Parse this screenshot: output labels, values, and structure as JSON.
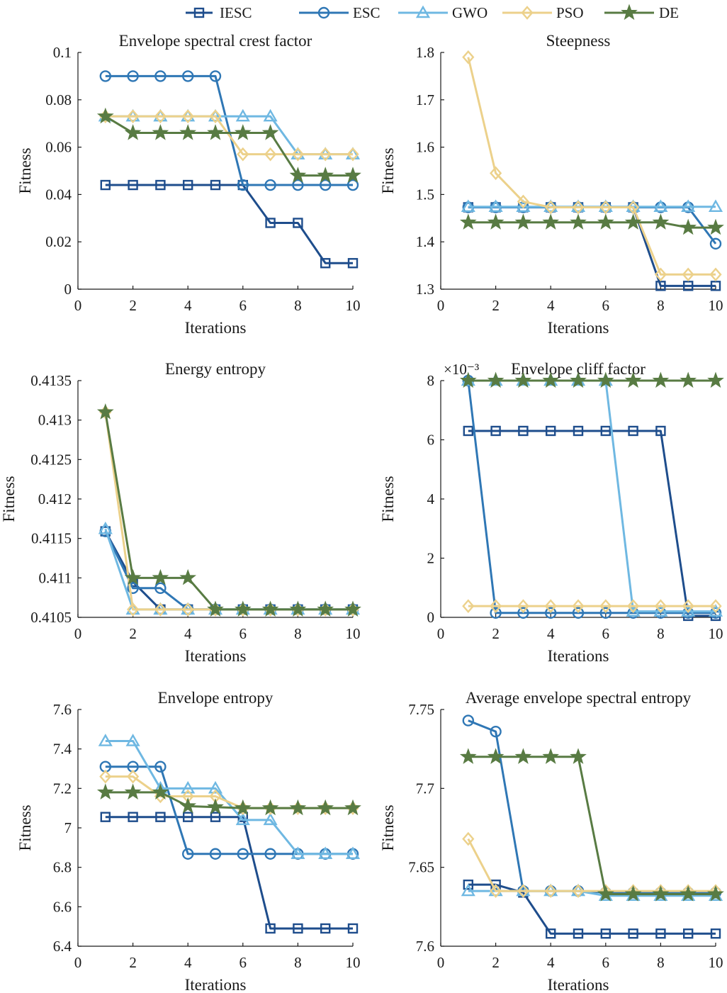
{
  "legend": [
    {
      "name": "IESC",
      "color": "#1e4d8c",
      "marker": "square"
    },
    {
      "name": "ESC",
      "color": "#2f77b5",
      "marker": "circle"
    },
    {
      "name": "GWO",
      "color": "#6fb8e2",
      "marker": "triangle"
    },
    {
      "name": "PSO",
      "color": "#ecd18b",
      "marker": "diamond"
    },
    {
      "name": "DE",
      "color": "#587b43",
      "marker": "star"
    }
  ],
  "chart_data": [
    {
      "type": "line",
      "title": "Envelope spectral crest factor",
      "xlabel": "Iterations",
      "ylabel": "Fitness",
      "xlim": [
        0,
        10
      ],
      "ylim": [
        0,
        0.1
      ],
      "xticks": [
        0,
        2,
        4,
        6,
        8,
        10
      ],
      "yticks": [
        0,
        0.02,
        0.04,
        0.06,
        0.08,
        0.1
      ],
      "ytick_labels": [
        "0",
        "0.02",
        "0.04",
        "0.06",
        "0.08",
        "0.1"
      ],
      "x": [
        1,
        2,
        3,
        4,
        5,
        6,
        7,
        8,
        9,
        10
      ],
      "series": [
        {
          "name": "IESC",
          "values": [
            0.044,
            0.044,
            0.044,
            0.044,
            0.044,
            0.044,
            0.028,
            0.028,
            0.011,
            0.011
          ]
        },
        {
          "name": "ESC",
          "values": [
            0.09,
            0.09,
            0.09,
            0.09,
            0.09,
            0.044,
            0.044,
            0.044,
            0.044,
            0.044
          ]
        },
        {
          "name": "GWO",
          "values": [
            0.073,
            0.073,
            0.073,
            0.073,
            0.073,
            0.073,
            0.073,
            0.057,
            0.057,
            0.057
          ]
        },
        {
          "name": "PSO",
          "values": [
            0.073,
            0.073,
            0.073,
            0.073,
            0.073,
            0.057,
            0.057,
            0.057,
            0.057,
            0.057
          ]
        },
        {
          "name": "DE",
          "values": [
            0.073,
            0.066,
            0.066,
            0.066,
            0.066,
            0.066,
            0.066,
            0.048,
            0.048,
            0.048
          ]
        }
      ]
    },
    {
      "type": "line",
      "title": "Steepness",
      "xlabel": "Iterations",
      "ylabel": "Fitness",
      "xlim": [
        0,
        10
      ],
      "ylim": [
        1.3,
        1.8
      ],
      "xticks": [
        0,
        2,
        4,
        6,
        8,
        10
      ],
      "yticks": [
        1.3,
        1.4,
        1.5,
        1.6,
        1.7,
        1.8
      ],
      "ytick_labels": [
        "1.3",
        "1.4",
        "1.5",
        "1.6",
        "1.7",
        "1.8"
      ],
      "x": [
        1,
        2,
        3,
        4,
        5,
        6,
        7,
        8,
        9,
        10
      ],
      "series": [
        {
          "name": "IESC",
          "values": [
            1.473,
            1.473,
            1.473,
            1.473,
            1.473,
            1.473,
            1.473,
            1.307,
            1.307,
            1.307
          ]
        },
        {
          "name": "ESC",
          "values": [
            1.473,
            1.473,
            1.473,
            1.473,
            1.473,
            1.473,
            1.473,
            1.473,
            1.473,
            1.396
          ]
        },
        {
          "name": "GWO",
          "values": [
            1.474,
            1.474,
            1.474,
            1.474,
            1.474,
            1.474,
            1.474,
            1.474,
            1.474,
            1.474
          ]
        },
        {
          "name": "PSO",
          "values": [
            1.79,
            1.545,
            1.485,
            1.473,
            1.473,
            1.473,
            1.473,
            1.331,
            1.331,
            1.331
          ]
        },
        {
          "name": "DE",
          "values": [
            1.441,
            1.441,
            1.441,
            1.441,
            1.441,
            1.441,
            1.441,
            1.441,
            1.43,
            1.43
          ]
        }
      ]
    },
    {
      "type": "line",
      "title": "Energy entropy",
      "xlabel": "Iterations",
      "ylabel": "Fitness",
      "xlim": [
        0,
        10
      ],
      "ylim": [
        0.4105,
        0.4135
      ],
      "xticks": [
        0,
        2,
        4,
        6,
        8,
        10
      ],
      "yticks": [
        0.4105,
        0.411,
        0.4115,
        0.412,
        0.4125,
        0.413,
        0.4135
      ],
      "ytick_labels": [
        "0.4105",
        "0.411",
        "0.4115",
        "0.412",
        "0.4125",
        "0.413",
        "0.4135"
      ],
      "x": [
        1,
        2,
        3,
        4,
        5,
        6,
        7,
        8,
        9,
        10
      ],
      "series": [
        {
          "name": "IESC",
          "values": [
            0.41159,
            0.41095,
            0.4106,
            0.4106,
            0.4106,
            0.4106,
            0.4106,
            0.4106,
            0.4106,
            0.4106
          ]
        },
        {
          "name": "ESC",
          "values": [
            0.41159,
            0.41087,
            0.41087,
            0.4106,
            0.4106,
            0.4106,
            0.4106,
            0.4106,
            0.4106,
            0.4106
          ]
        },
        {
          "name": "GWO",
          "values": [
            0.41162,
            0.4106,
            0.4106,
            0.4106,
            0.4106,
            0.4106,
            0.4106,
            0.4106,
            0.4106,
            0.4106
          ]
        },
        {
          "name": "PSO",
          "values": [
            0.4131,
            0.4106,
            0.4106,
            0.4106,
            0.4106,
            0.4106,
            0.4106,
            0.4106,
            0.4106,
            0.4106
          ]
        },
        {
          "name": "DE",
          "values": [
            0.4131,
            0.411,
            0.411,
            0.411,
            0.4106,
            0.4106,
            0.4106,
            0.4106,
            0.4106,
            0.4106
          ]
        }
      ]
    },
    {
      "type": "line",
      "title": "Envelope cliff factor",
      "scale_label": "×10⁻³",
      "xlabel": "Iterations",
      "ylabel": "Fitness",
      "xlim": [
        0,
        10
      ],
      "ylim": [
        0,
        8
      ],
      "xticks": [
        0,
        2,
        4,
        6,
        8,
        10
      ],
      "yticks": [
        0,
        2,
        4,
        6,
        8
      ],
      "ytick_labels": [
        "0",
        "2",
        "4",
        "6",
        "8"
      ],
      "x": [
        1,
        2,
        3,
        4,
        5,
        6,
        7,
        8,
        9,
        10
      ],
      "series": [
        {
          "name": "IESC",
          "values": [
            6.3,
            6.3,
            6.3,
            6.3,
            6.3,
            6.3,
            6.3,
            6.3,
            0.05,
            0.05
          ]
        },
        {
          "name": "ESC",
          "values": [
            8.0,
            0.15,
            0.15,
            0.15,
            0.15,
            0.15,
            0.15,
            0.15,
            0.15,
            0.15
          ]
        },
        {
          "name": "GWO",
          "values": [
            8.0,
            8.0,
            8.0,
            8.0,
            8.0,
            8.0,
            0.2,
            0.2,
            0.2,
            0.2
          ]
        },
        {
          "name": "PSO",
          "values": [
            0.38,
            0.38,
            0.38,
            0.38,
            0.38,
            0.38,
            0.38,
            0.38,
            0.38,
            0.38
          ]
        },
        {
          "name": "DE",
          "values": [
            8.0,
            8.0,
            8.0,
            8.0,
            8.0,
            8.0,
            8.0,
            8.0,
            8.0,
            8.0
          ]
        }
      ]
    },
    {
      "type": "line",
      "title": "Envelope entropy",
      "xlabel": "Iterations",
      "ylabel": "Fitness",
      "xlim": [
        0,
        10
      ],
      "ylim": [
        6.4,
        7.6
      ],
      "xticks": [
        0,
        2,
        4,
        6,
        8,
        10
      ],
      "yticks": [
        6.4,
        6.6,
        6.8,
        7.0,
        7.2,
        7.4,
        7.6
      ],
      "ytick_labels": [
        "6.4",
        "6.6",
        "6.8",
        "7",
        "7.2",
        "7.4",
        "7.6"
      ],
      "x": [
        1,
        2,
        3,
        4,
        5,
        6,
        7,
        8,
        9,
        10
      ],
      "series": [
        {
          "name": "IESC",
          "values": [
            7.055,
            7.055,
            7.055,
            7.055,
            7.055,
            7.055,
            6.49,
            6.49,
            6.49,
            6.49
          ]
        },
        {
          "name": "ESC",
          "values": [
            7.31,
            7.31,
            7.31,
            6.868,
            6.868,
            6.868,
            6.868,
            6.868,
            6.868,
            6.868
          ]
        },
        {
          "name": "GWO",
          "values": [
            7.44,
            7.44,
            7.2,
            7.2,
            7.2,
            7.04,
            7.04,
            6.868,
            6.868,
            6.868
          ]
        },
        {
          "name": "PSO",
          "values": [
            7.26,
            7.26,
            7.16,
            7.16,
            7.16,
            7.1,
            7.1,
            7.1,
            7.1,
            7.1
          ]
        },
        {
          "name": "DE",
          "values": [
            7.18,
            7.18,
            7.18,
            7.11,
            7.105,
            7.1,
            7.1,
            7.1,
            7.1,
            7.1
          ]
        }
      ]
    },
    {
      "type": "line",
      "title": "Average envelope spectral entropy",
      "xlabel": "Iterations",
      "ylabel": "Fitness",
      "xlim": [
        0,
        10
      ],
      "ylim": [
        7.6,
        7.75
      ],
      "xticks": [
        0,
        2,
        4,
        6,
        8,
        10
      ],
      "yticks": [
        7.6,
        7.65,
        7.7,
        7.75
      ],
      "ytick_labels": [
        "7.6",
        "7.65",
        "7.7",
        "7.75"
      ],
      "x": [
        1,
        2,
        3,
        4,
        5,
        6,
        7,
        8,
        9,
        10
      ],
      "series": [
        {
          "name": "IESC",
          "values": [
            7.639,
            7.639,
            7.634,
            7.608,
            7.608,
            7.608,
            7.608,
            7.608,
            7.608,
            7.608
          ]
        },
        {
          "name": "ESC",
          "values": [
            7.743,
            7.736,
            7.635,
            7.635,
            7.635,
            7.634,
            7.634,
            7.634,
            7.634,
            7.634
          ]
        },
        {
          "name": "GWO",
          "values": [
            7.635,
            7.635,
            7.635,
            7.635,
            7.635,
            7.632,
            7.632,
            7.632,
            7.632,
            7.632
          ]
        },
        {
          "name": "PSO",
          "values": [
            7.668,
            7.635,
            7.635,
            7.635,
            7.635,
            7.635,
            7.635,
            7.635,
            7.635,
            7.635
          ]
        },
        {
          "name": "DE",
          "values": [
            7.72,
            7.72,
            7.72,
            7.72,
            7.72,
            7.633,
            7.633,
            7.633,
            7.633,
            7.633
          ]
        }
      ]
    }
  ]
}
